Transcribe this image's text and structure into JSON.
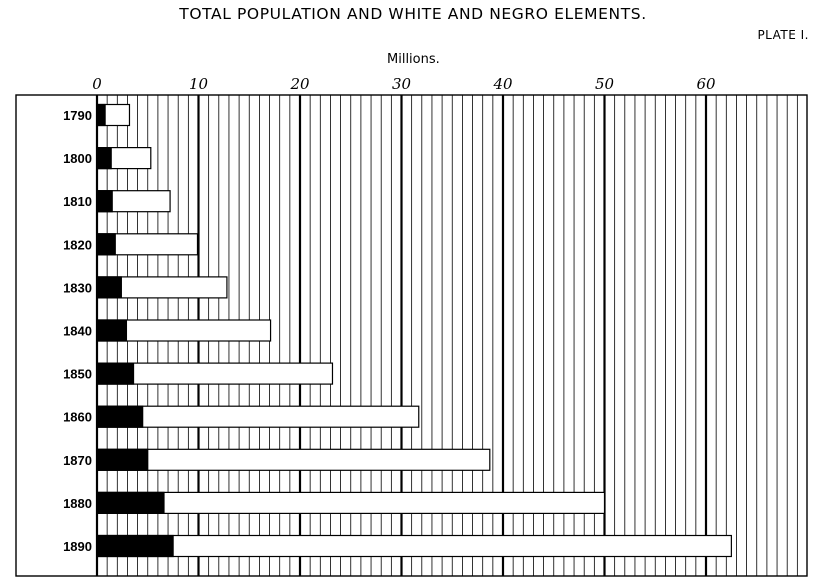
{
  "chart_data": {
    "type": "bar",
    "title": "TOTAL POPULATION AND WHITE AND NEGRO ELEMENTS.",
    "plate": "PLATE I.",
    "xlabel": "Millions.",
    "xlim": [
      0,
      70
    ],
    "x_ticks": [
      "0",
      "10",
      "20",
      "30",
      "40",
      "50",
      "60"
    ],
    "minor_tick_interval": 1,
    "major_tick_interval": 10,
    "categories": [
      "1790",
      "1800",
      "1810",
      "1820",
      "1830",
      "1840",
      "1850",
      "1860",
      "1870",
      "1880",
      "1890"
    ],
    "series": [
      {
        "values": [
          0.8,
          1.4,
          1.5,
          1.8,
          2.4,
          2.9,
          3.6,
          4.5,
          5.0,
          6.6,
          7.5
        ]
      },
      {
        "values": [
          3.2,
          5.3,
          7.2,
          9.9,
          12.8,
          17.1,
          23.2,
          31.7,
          38.7,
          50.0,
          62.5
        ]
      }
    ],
    "colors": {
      "negro": "#000000",
      "white": "#ffffff",
      "outline": "#000000",
      "grid": "#000000"
    },
    "grid": true
  }
}
